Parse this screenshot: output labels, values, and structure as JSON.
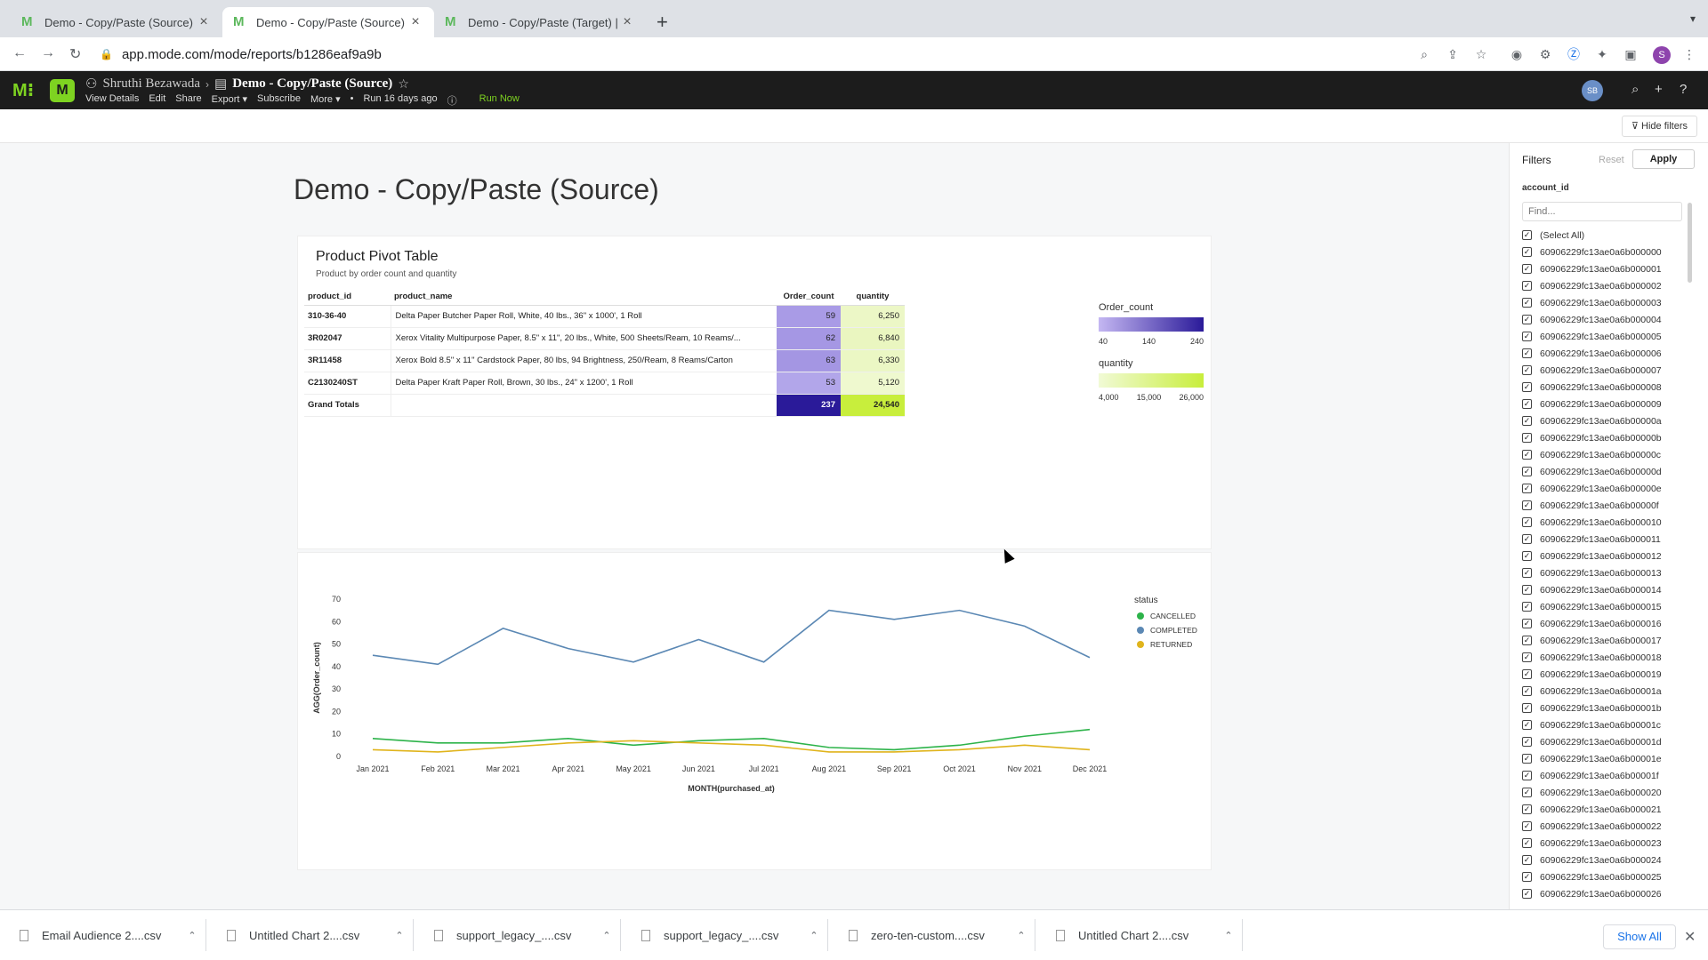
{
  "browser": {
    "tabs": [
      {
        "title": "Demo - Copy/Paste (Source) | M",
        "active": false
      },
      {
        "title": "Demo - Copy/Paste (Source) | M",
        "active": true
      },
      {
        "title": "Demo - Copy/Paste (Target) | M",
        "active": false
      }
    ],
    "url": "app.mode.com/mode/reports/b1286eaf9a9b",
    "profile_initial": "S"
  },
  "header": {
    "owner": "Shruthi Bezawada",
    "report_title": "Demo - Copy/Paste (Source)",
    "actions": [
      "View Details",
      "Edit",
      "Share",
      "Export ▾",
      "Subscribe",
      "More ▾"
    ],
    "run_info": "Run 16 days ago",
    "run_now": "Run Now",
    "avatar_initials": "SB"
  },
  "subbar": {
    "hide_filters": "Hide filters"
  },
  "report": {
    "title": "Demo - Copy/Paste (Source)"
  },
  "pivot": {
    "title": "Product Pivot Table",
    "subtitle": "Product by order count and quantity",
    "columns": [
      "product_id",
      "product_name",
      "Order_count",
      "quantity"
    ],
    "rows": [
      {
        "id": "310-36-40",
        "name": "Delta Paper Butcher Paper Roll, White, 40 lbs., 36\" x 1000', 1 Roll",
        "order_count": "59",
        "quantity": "6,250",
        "oc_color": "#a99be6",
        "q_color": "#ecf7c6"
      },
      {
        "id": "3R02047",
        "name": "Xerox Vitality Multipurpose Paper, 8.5\" x 11\", 20 lbs., White, 500 Sheets/Ream, 10 Reams/...",
        "order_count": "62",
        "quantity": "6,840",
        "oc_color": "#a597e4",
        "q_color": "#eaf6c0"
      },
      {
        "id": "3R11458",
        "name": "Xerox Bold 8.5\" x 11\" Cardstock Paper, 80 lbs, 94 Brightness, 250/Ream, 8 Reams/Carton",
        "order_count": "63",
        "quantity": "6,330",
        "oc_color": "#a496e3",
        "q_color": "#ebf7c4"
      },
      {
        "id": "C2130240ST",
        "name": "Delta Paper Kraft Paper Roll, Brown, 30 lbs., 24\" x 1200', 1 Roll",
        "order_count": "53",
        "quantity": "5,120",
        "oc_color": "#b2a6ea",
        "q_color": "#eff9cf"
      }
    ],
    "grand": {
      "label": "Grand Totals",
      "order_count": "237",
      "quantity": "24,540",
      "oc_color": "#2a1a99",
      "q_color": "#c8ee3c"
    },
    "legend": {
      "order_count": {
        "label": "Order_count",
        "ticks": [
          "40",
          "140",
          "240"
        ],
        "from": "#c4b7f2",
        "to": "#2a1a99"
      },
      "quantity": {
        "label": "quantity",
        "ticks": [
          "4,000",
          "15,000",
          "26,000"
        ],
        "from": "#f1fad6",
        "to": "#c8ee3c"
      }
    }
  },
  "chart_data": {
    "type": "line",
    "title": "",
    "xlabel": "MONTH(purchased_at)",
    "ylabel": "AGG(Order_count)",
    "ylim": [
      0,
      70
    ],
    "yticks": [
      0,
      10,
      20,
      30,
      40,
      50,
      60,
      70
    ],
    "categories": [
      "Jan 2021",
      "Feb 2021",
      "Mar 2021",
      "Apr 2021",
      "May 2021",
      "Jun 2021",
      "Jul 2021",
      "Aug 2021",
      "Sep 2021",
      "Oct 2021",
      "Nov 2021",
      "Dec 2021"
    ],
    "legend_title": "status",
    "legend_position": "right",
    "series": [
      {
        "name": "CANCELLED",
        "color": "#2db34a",
        "values": [
          8,
          6,
          6,
          8,
          5,
          7,
          8,
          4,
          3,
          5,
          9,
          12
        ]
      },
      {
        "name": "COMPLETED",
        "color": "#5b88b4",
        "values": [
          45,
          41,
          57,
          48,
          42,
          52,
          42,
          65,
          61,
          65,
          58,
          44
        ]
      },
      {
        "name": "RETURNED",
        "color": "#e0b41c",
        "values": [
          3,
          2,
          4,
          6,
          7,
          6,
          5,
          2,
          2,
          3,
          5,
          3
        ]
      }
    ]
  },
  "filters": {
    "title": "Filters",
    "reset": "Reset",
    "apply": "Apply",
    "field": "account_id",
    "search_placeholder": "Find...",
    "items": [
      "(Select All)",
      "60906229fc13ae0a6b000000",
      "60906229fc13ae0a6b000001",
      "60906229fc13ae0a6b000002",
      "60906229fc13ae0a6b000003",
      "60906229fc13ae0a6b000004",
      "60906229fc13ae0a6b000005",
      "60906229fc13ae0a6b000006",
      "60906229fc13ae0a6b000007",
      "60906229fc13ae0a6b000008",
      "60906229fc13ae0a6b000009",
      "60906229fc13ae0a6b00000a",
      "60906229fc13ae0a6b00000b",
      "60906229fc13ae0a6b00000c",
      "60906229fc13ae0a6b00000d",
      "60906229fc13ae0a6b00000e",
      "60906229fc13ae0a6b00000f",
      "60906229fc13ae0a6b000010",
      "60906229fc13ae0a6b000011",
      "60906229fc13ae0a6b000012",
      "60906229fc13ae0a6b000013",
      "60906229fc13ae0a6b000014",
      "60906229fc13ae0a6b000015",
      "60906229fc13ae0a6b000016",
      "60906229fc13ae0a6b000017",
      "60906229fc13ae0a6b000018",
      "60906229fc13ae0a6b000019",
      "60906229fc13ae0a6b00001a",
      "60906229fc13ae0a6b00001b",
      "60906229fc13ae0a6b00001c",
      "60906229fc13ae0a6b00001d",
      "60906229fc13ae0a6b00001e",
      "60906229fc13ae0a6b00001f",
      "60906229fc13ae0a6b000020",
      "60906229fc13ae0a6b000021",
      "60906229fc13ae0a6b000022",
      "60906229fc13ae0a6b000023",
      "60906229fc13ae0a6b000024",
      "60906229fc13ae0a6b000025",
      "60906229fc13ae0a6b000026"
    ]
  },
  "downloads": {
    "items": [
      "Email Audience 2....csv",
      "Untitled Chart 2....csv",
      "support_legacy_....csv",
      "support_legacy_....csv",
      "zero-ten-custom....csv",
      "Untitled Chart 2....csv"
    ],
    "show_all": "Show All"
  }
}
